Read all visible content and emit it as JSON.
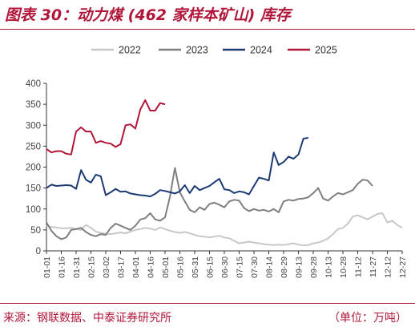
{
  "header": {
    "title": "图表 30：动力煤 (462 家样本矿山) 库存"
  },
  "footer": {
    "source": "来源：钢联数据、中泰证券研究所",
    "unit": "（单位：万吨）"
  },
  "chart_data": {
    "type": "line",
    "title": "图表 30：动力煤 (462 家样本矿山) 库存",
    "ylim": [
      0,
      400
    ],
    "yticks": [
      0,
      50,
      100,
      150,
      200,
      250,
      300,
      350,
      400
    ],
    "x_labels": [
      "01-01",
      "01-16",
      "01-31",
      "02-15",
      "03-02",
      "03-17",
      "04-01",
      "04-16",
      "05-01",
      "05-16",
      "05-31",
      "06-15",
      "06-30",
      "07-15",
      "07-30",
      "08-14",
      "08-29",
      "09-13",
      "09-28",
      "10-13",
      "10-28",
      "11-12",
      "11-27",
      "12-12",
      "12-27"
    ],
    "x_range": [
      1,
      361
    ],
    "grid": false,
    "legend_position": "top",
    "series": [
      {
        "name": "2022",
        "color": "#c8c8c8",
        "points": [
          [
            1,
            60
          ],
          [
            6,
            57
          ],
          [
            11,
            56
          ],
          [
            16,
            54
          ],
          [
            21,
            54
          ],
          [
            26,
            55
          ],
          [
            31,
            52
          ],
          [
            36,
            50
          ],
          [
            41,
            62
          ],
          [
            46,
            55
          ],
          [
            51,
            46
          ],
          [
            56,
            43
          ],
          [
            61,
            41
          ],
          [
            66,
            40
          ],
          [
            71,
            42
          ],
          [
            76,
            44
          ],
          [
            81,
            42
          ],
          [
            86,
            46
          ],
          [
            91,
            50
          ],
          [
            96,
            52
          ],
          [
            101,
            55
          ],
          [
            106,
            53
          ],
          [
            111,
            50
          ],
          [
            116,
            56
          ],
          [
            121,
            52
          ],
          [
            126,
            48
          ],
          [
            131,
            45
          ],
          [
            136,
            43
          ],
          [
            141,
            45
          ],
          [
            146,
            42
          ],
          [
            151,
            38
          ],
          [
            156,
            35
          ],
          [
            161,
            34
          ],
          [
            166,
            32
          ],
          [
            171,
            34
          ],
          [
            176,
            36
          ],
          [
            181,
            32
          ],
          [
            186,
            30
          ],
          [
            191,
            24
          ],
          [
            196,
            18
          ],
          [
            201,
            20
          ],
          [
            206,
            22
          ],
          [
            211,
            20
          ],
          [
            216,
            18
          ],
          [
            221,
            16
          ],
          [
            226,
            15
          ],
          [
            231,
            14
          ],
          [
            236,
            15
          ],
          [
            241,
            14
          ],
          [
            246,
            16
          ],
          [
            251,
            18
          ],
          [
            256,
            15
          ],
          [
            261,
            13
          ],
          [
            266,
            14
          ],
          [
            271,
            18
          ],
          [
            276,
            20
          ],
          [
            281,
            24
          ],
          [
            286,
            30
          ],
          [
            291,
            40
          ],
          [
            296,
            52
          ],
          [
            301,
            55
          ],
          [
            306,
            65
          ],
          [
            311,
            82
          ],
          [
            316,
            85
          ],
          [
            321,
            80
          ],
          [
            326,
            75
          ],
          [
            331,
            82
          ],
          [
            336,
            88
          ],
          [
            341,
            90
          ],
          [
            346,
            68
          ],
          [
            351,
            72
          ],
          [
            356,
            62
          ],
          [
            361,
            55
          ]
        ]
      },
      {
        "name": "2023",
        "color": "#7f7f7f",
        "points": [
          [
            1,
            68
          ],
          [
            6,
            48
          ],
          [
            11,
            35
          ],
          [
            16,
            28
          ],
          [
            21,
            32
          ],
          [
            26,
            50
          ],
          [
            31,
            52
          ],
          [
            36,
            55
          ],
          [
            41,
            45
          ],
          [
            46,
            38
          ],
          [
            51,
            35
          ],
          [
            56,
            40
          ],
          [
            61,
            38
          ],
          [
            66,
            55
          ],
          [
            71,
            65
          ],
          [
            76,
            60
          ],
          [
            81,
            55
          ],
          [
            86,
            50
          ],
          [
            91,
            60
          ],
          [
            96,
            75
          ],
          [
            101,
            78
          ],
          [
            106,
            90
          ],
          [
            111,
            75
          ],
          [
            116,
            72
          ],
          [
            121,
            80
          ],
          [
            126,
            130
          ],
          [
            131,
            198
          ],
          [
            136,
            140
          ],
          [
            141,
            118
          ],
          [
            146,
            98
          ],
          [
            151,
            92
          ],
          [
            156,
            104
          ],
          [
            161,
            98
          ],
          [
            166,
            112
          ],
          [
            171,
            115
          ],
          [
            176,
            110
          ],
          [
            181,
            104
          ],
          [
            186,
            118
          ],
          [
            191,
            122
          ],
          [
            196,
            120
          ],
          [
            201,
            102
          ],
          [
            206,
            95
          ],
          [
            211,
            100
          ],
          [
            216,
            96
          ],
          [
            221,
            98
          ],
          [
            226,
            94
          ],
          [
            231,
            100
          ],
          [
            236,
            92
          ],
          [
            241,
            118
          ],
          [
            246,
            122
          ],
          [
            251,
            120
          ],
          [
            256,
            124
          ],
          [
            261,
            125
          ],
          [
            266,
            128
          ],
          [
            271,
            138
          ],
          [
            276,
            150
          ],
          [
            281,
            125
          ],
          [
            286,
            120
          ],
          [
            291,
            130
          ],
          [
            296,
            138
          ],
          [
            301,
            135
          ],
          [
            306,
            140
          ],
          [
            311,
            145
          ],
          [
            316,
            160
          ],
          [
            321,
            170
          ],
          [
            326,
            168
          ],
          [
            331,
            155
          ]
        ]
      },
      {
        "name": "2024",
        "color": "#1c3a73",
        "points": [
          [
            1,
            150
          ],
          [
            6,
            158
          ],
          [
            11,
            155
          ],
          [
            16,
            156
          ],
          [
            21,
            157
          ],
          [
            26,
            156
          ],
          [
            31,
            148
          ],
          [
            36,
            193
          ],
          [
            41,
            170
          ],
          [
            46,
            163
          ],
          [
            51,
            182
          ],
          [
            56,
            178
          ],
          [
            61,
            133
          ],
          [
            66,
            140
          ],
          [
            71,
            148
          ],
          [
            76,
            141
          ],
          [
            81,
            142
          ],
          [
            86,
            137
          ],
          [
            91,
            135
          ],
          [
            96,
            133
          ],
          [
            101,
            132
          ],
          [
            106,
            130
          ],
          [
            111,
            136
          ],
          [
            116,
            145
          ],
          [
            121,
            143
          ],
          [
            126,
            140
          ],
          [
            131,
            137
          ],
          [
            136,
            142
          ],
          [
            141,
            157
          ],
          [
            146,
            138
          ],
          [
            151,
            155
          ],
          [
            156,
            145
          ],
          [
            161,
            150
          ],
          [
            166,
            155
          ],
          [
            171,
            164
          ],
          [
            176,
            172
          ],
          [
            181,
            147
          ],
          [
            186,
            145
          ],
          [
            191,
            138
          ],
          [
            196,
            142
          ],
          [
            201,
            140
          ],
          [
            206,
            135
          ],
          [
            211,
            155
          ],
          [
            216,
            175
          ],
          [
            221,
            172
          ],
          [
            226,
            168
          ],
          [
            231,
            235
          ],
          [
            236,
            205
          ],
          [
            241,
            212
          ],
          [
            246,
            225
          ],
          [
            251,
            220
          ],
          [
            256,
            230
          ],
          [
            261,
            268
          ],
          [
            266,
            270
          ]
        ]
      },
      {
        "name": "2025",
        "color": "#b0163a",
        "points": [
          [
            1,
            243
          ],
          [
            6,
            235
          ],
          [
            11,
            238
          ],
          [
            16,
            238
          ],
          [
            21,
            232
          ],
          [
            26,
            230
          ],
          [
            31,
            285
          ],
          [
            36,
            295
          ],
          [
            41,
            285
          ],
          [
            46,
            285
          ],
          [
            51,
            258
          ],
          [
            56,
            262
          ],
          [
            61,
            258
          ],
          [
            66,
            256
          ],
          [
            71,
            248
          ],
          [
            76,
            255
          ],
          [
            81,
            300
          ],
          [
            86,
            302
          ],
          [
            91,
            292
          ],
          [
            96,
            338
          ],
          [
            101,
            360
          ],
          [
            106,
            335
          ],
          [
            111,
            335
          ],
          [
            116,
            353
          ],
          [
            121,
            350
          ]
        ]
      }
    ]
  }
}
